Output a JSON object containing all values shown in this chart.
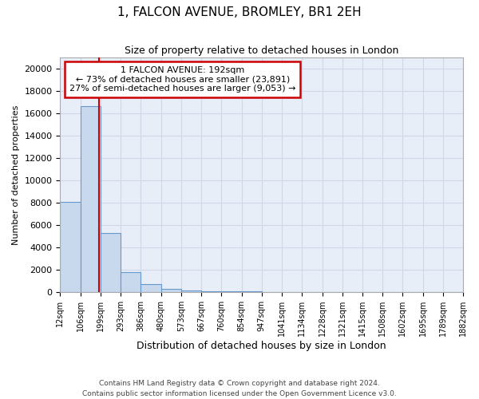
{
  "title1": "1, FALCON AVENUE, BROMLEY, BR1 2EH",
  "title2": "Size of property relative to detached houses in London",
  "xlabel": "Distribution of detached houses by size in London",
  "ylabel": "Number of detached properties",
  "bar_edges": [
    12,
    106,
    199,
    293,
    386,
    480,
    573,
    667,
    760,
    854,
    947,
    1041,
    1134,
    1228,
    1321,
    1415,
    1508,
    1602,
    1695,
    1789,
    1882
  ],
  "bar_heights": [
    8100,
    16600,
    5300,
    1800,
    750,
    290,
    170,
    100,
    90,
    85,
    0,
    0,
    0,
    0,
    0,
    0,
    0,
    0,
    0,
    0
  ],
  "bar_color": "#c8d8ed",
  "bar_edge_color": "#6699cc",
  "grid_color": "#d0d8e8",
  "background_color": "#e8eef8",
  "red_line_x": 192,
  "annotation_text": "1 FALCON AVENUE: 192sqm\n← 73% of detached houses are smaller (23,891)\n27% of semi-detached houses are larger (9,053) →",
  "annotation_box_color": "#ffffff",
  "annotation_border_color": "#cc0000",
  "ylim": [
    0,
    21000
  ],
  "yticks": [
    0,
    2000,
    4000,
    6000,
    8000,
    10000,
    12000,
    14000,
    16000,
    18000,
    20000
  ],
  "footer1": "Contains HM Land Registry data © Crown copyright and database right 2024.",
  "footer2": "Contains public sector information licensed under the Open Government Licence v3.0.",
  "tick_labels": [
    "12sqm",
    "106sqm",
    "199sqm",
    "293sqm",
    "386sqm",
    "480sqm",
    "573sqm",
    "667sqm",
    "760sqm",
    "854sqm",
    "947sqm",
    "1041sqm",
    "1134sqm",
    "1228sqm",
    "1321sqm",
    "1415sqm",
    "1508sqm",
    "1602sqm",
    "1695sqm",
    "1789sqm",
    "1882sqm"
  ]
}
